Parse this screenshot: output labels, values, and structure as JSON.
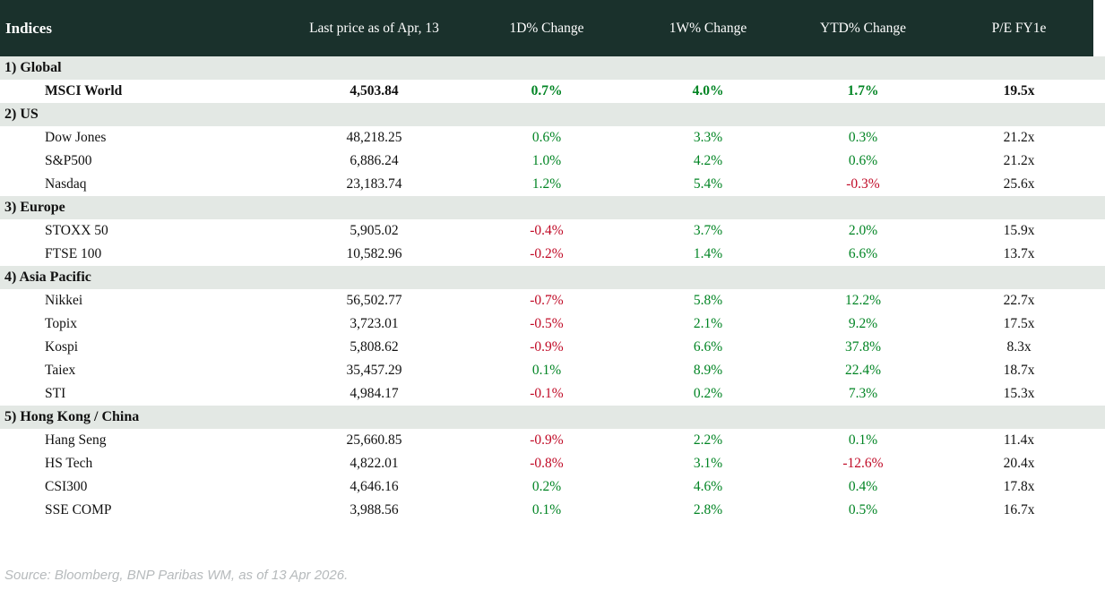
{
  "header": {
    "columns": [
      "Indices",
      "Last price as of Apr, 13",
      "1D% Change",
      "1W% Change",
      "YTD% Change",
      "P/E FY1e"
    ]
  },
  "sections": [
    {
      "label": "1) Global",
      "rows": [
        {
          "name": "MSCI World",
          "last": "4,503.84",
          "d1": "0.7%",
          "w1": "4.0%",
          "ytd": "1.7%",
          "pe": "19.5x",
          "bold": true
        }
      ]
    },
    {
      "label": "2) US",
      "rows": [
        {
          "name": "Dow Jones",
          "last": "48,218.25",
          "d1": "0.6%",
          "w1": "3.3%",
          "ytd": "0.3%",
          "pe": "21.2x"
        },
        {
          "name": "S&P500",
          "last": "6,886.24",
          "d1": "1.0%",
          "w1": "4.2%",
          "ytd": "0.6%",
          "pe": "21.2x"
        },
        {
          "name": "Nasdaq",
          "last": "23,183.74",
          "d1": "1.2%",
          "w1": "5.4%",
          "ytd": "-0.3%",
          "pe": "25.6x"
        }
      ]
    },
    {
      "label": "3) Europe",
      "rows": [
        {
          "name": "STOXX 50",
          "last": "5,905.02",
          "d1": "-0.4%",
          "w1": "3.7%",
          "ytd": "2.0%",
          "pe": "15.9x"
        },
        {
          "name": "FTSE 100",
          "last": "10,582.96",
          "d1": "-0.2%",
          "w1": "1.4%",
          "ytd": "6.6%",
          "pe": "13.7x"
        }
      ]
    },
    {
      "label": "4) Asia Pacific",
      "rows": [
        {
          "name": "Nikkei",
          "last": "56,502.77",
          "d1": "-0.7%",
          "w1": "5.8%",
          "ytd": "12.2%",
          "pe": "22.7x"
        },
        {
          "name": "Topix",
          "last": "3,723.01",
          "d1": "-0.5%",
          "w1": "2.1%",
          "ytd": "9.2%",
          "pe": "17.5x"
        },
        {
          "name": "Kospi",
          "last": "5,808.62",
          "d1": "-0.9%",
          "w1": "6.6%",
          "ytd": "37.8%",
          "pe": "8.3x"
        },
        {
          "name": "Taiex",
          "last": "35,457.29",
          "d1": "0.1%",
          "w1": "8.9%",
          "ytd": "22.4%",
          "pe": "18.7x"
        },
        {
          "name": "STI",
          "last": "4,984.17",
          "d1": "-0.1%",
          "w1": "0.2%",
          "ytd": "7.3%",
          "pe": "15.3x"
        }
      ]
    },
    {
      "label": "5) Hong Kong / China",
      "rows": [
        {
          "name": "Hang Seng",
          "last": "25,660.85",
          "d1": "-0.9%",
          "w1": "2.2%",
          "ytd": "0.1%",
          "pe": "11.4x"
        },
        {
          "name": "HS Tech",
          "last": "4,822.01",
          "d1": "-0.8%",
          "w1": "3.1%",
          "ytd": "-12.6%",
          "pe": "20.4x"
        },
        {
          "name": "CSI300",
          "last": "4,646.16",
          "d1": "0.2%",
          "w1": "4.6%",
          "ytd": "0.4%",
          "pe": "17.8x"
        },
        {
          "name": "SSE COMP",
          "last": "3,988.56",
          "d1": "0.1%",
          "w1": "2.8%",
          "ytd": "0.5%",
          "pe": "16.7x"
        }
      ]
    }
  ],
  "footer": {
    "source": "Source: Bloomberg, BNP Paribas WM, as of 13 Apr 2026."
  },
  "colors": {
    "header_bg": "#1a312c",
    "section_bg": "#e3e8e4",
    "positive": "#008423",
    "negative": "#c00a26",
    "footer_text": "#b6babc"
  }
}
